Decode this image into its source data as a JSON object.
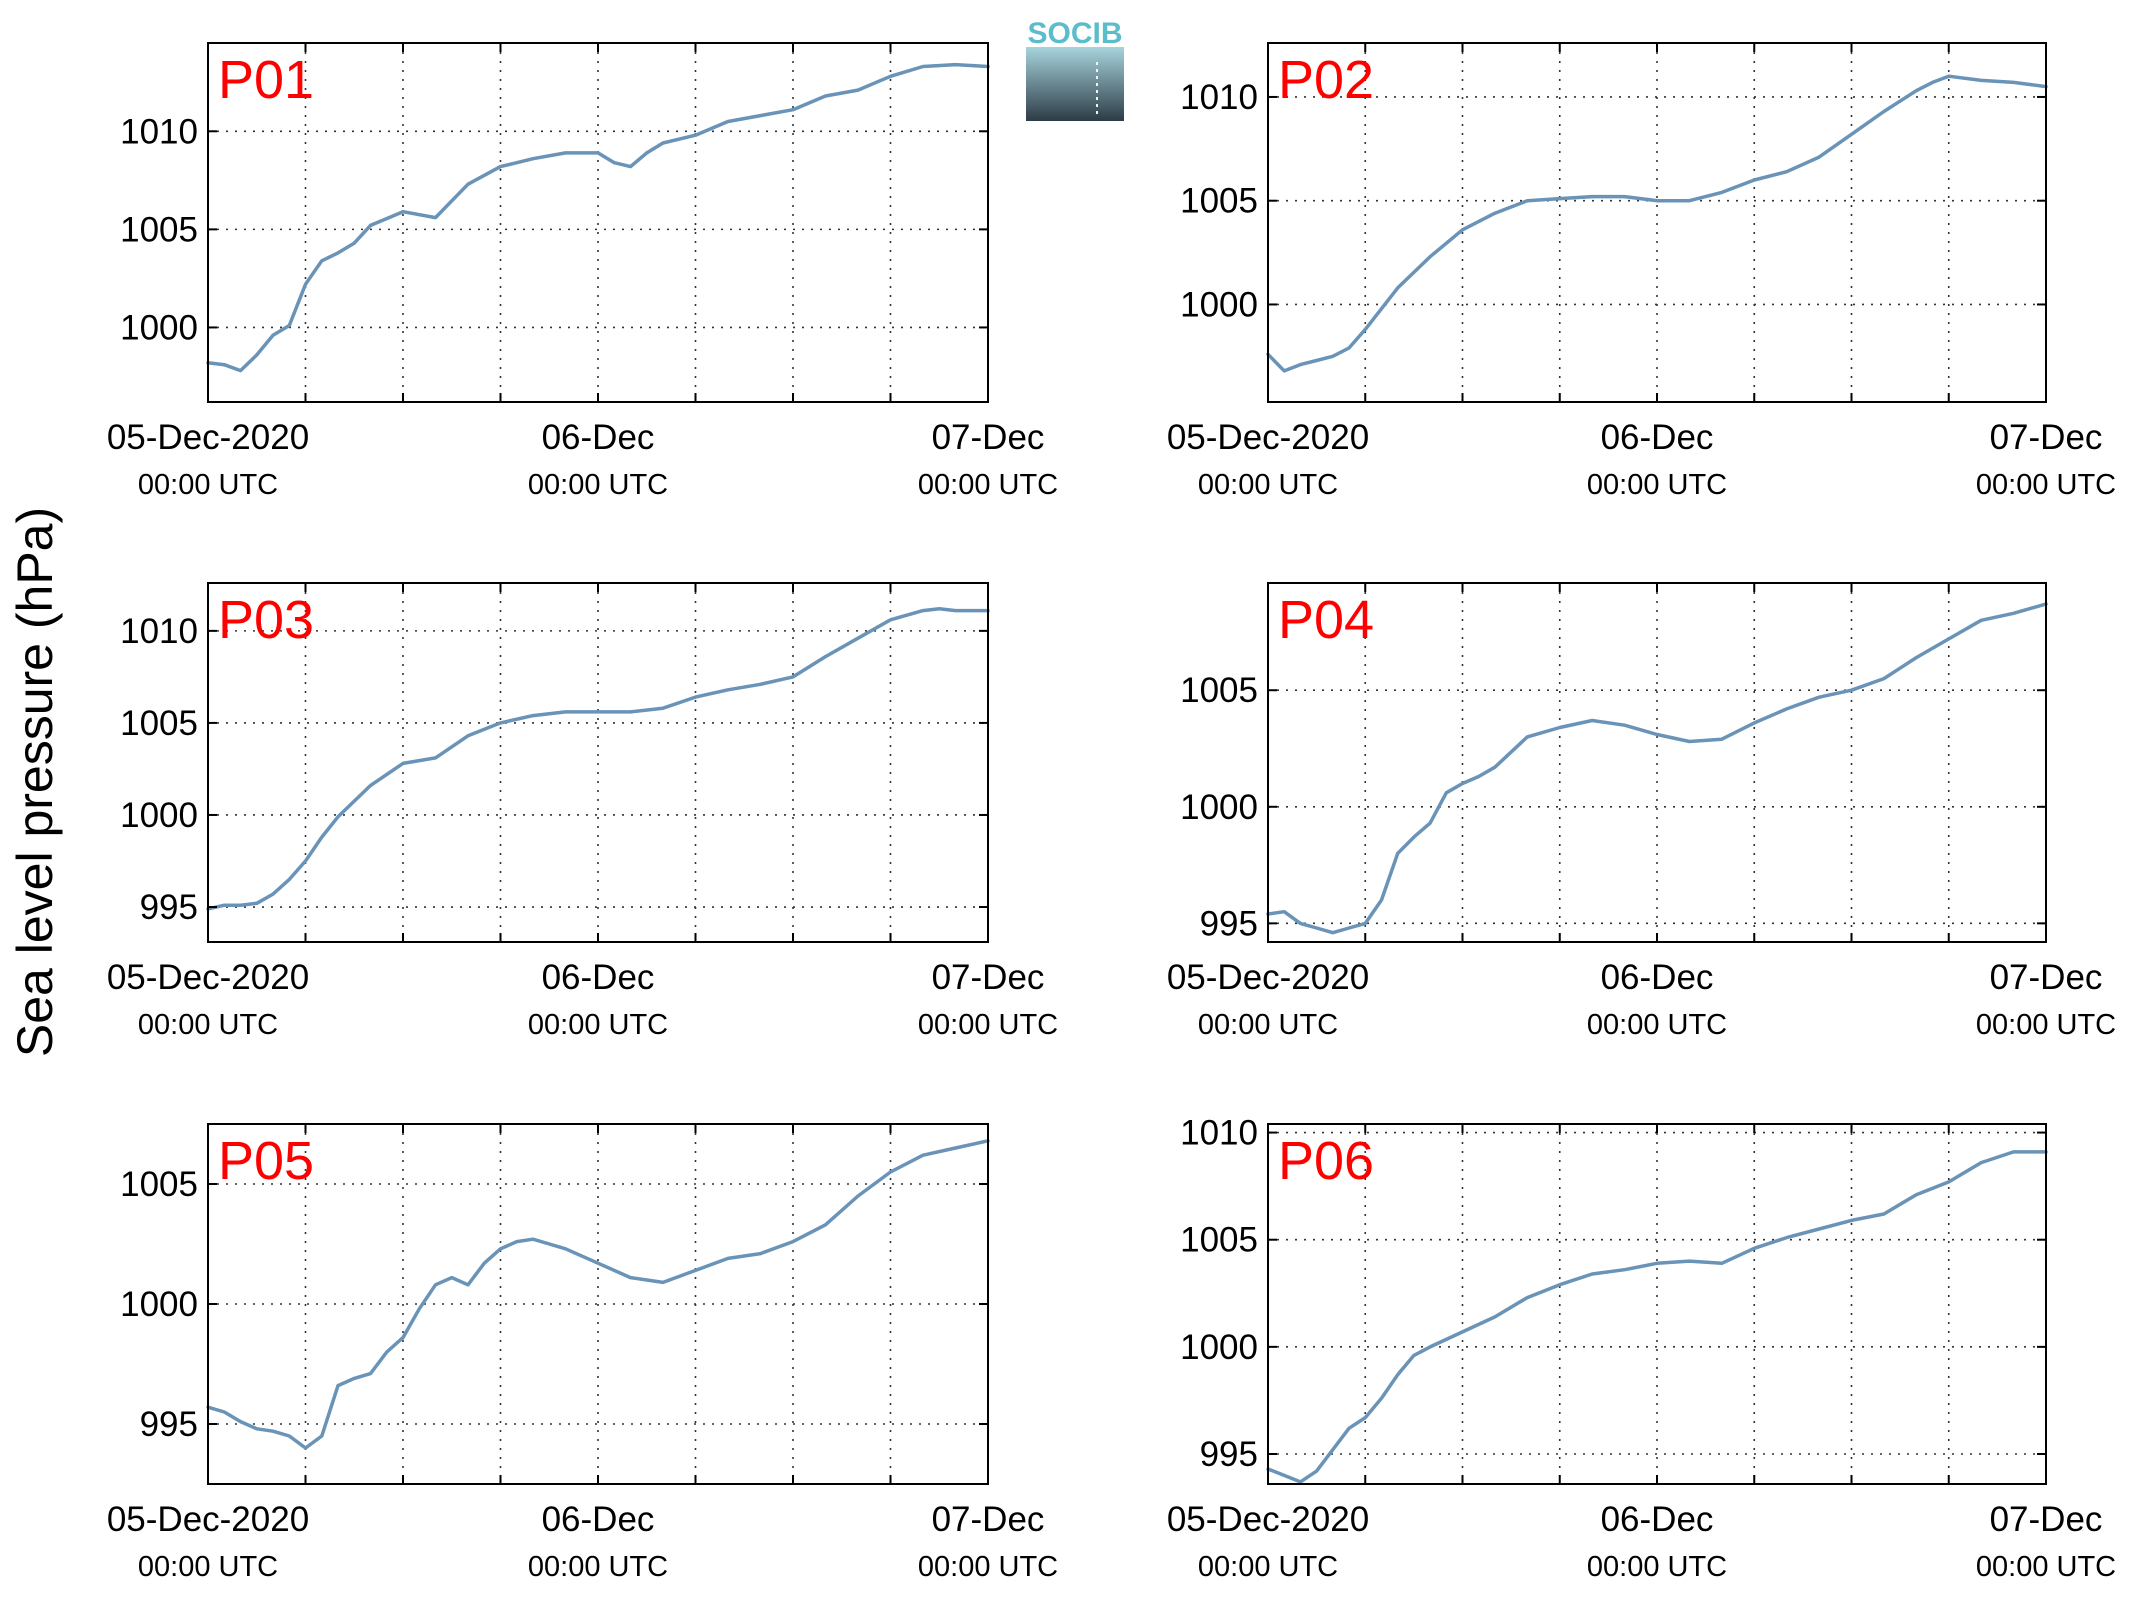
{
  "figure": {
    "ylabel": "Sea level pressure (hPa)",
    "logo_text": "SOCIB",
    "line_color": "#6a93b8",
    "label_color": "#ff0000"
  },
  "chart_data": [
    {
      "type": "line",
      "panel": "P01",
      "x_range_hours": [
        0,
        48
      ],
      "x_ticks": [
        {
          "date": "05-Dec-2020",
          "time": "00:00 UTC"
        },
        {
          "date": "06-Dec",
          "time": "00:00 UTC"
        },
        {
          "date": "07-Dec",
          "time": "00:00 UTC"
        }
      ],
      "ylim": [
        996.2,
        1014.5
      ],
      "yticks": [
        1000,
        1005,
        1010
      ],
      "grid": true,
      "x": [
        0,
        1,
        2,
        3,
        4,
        5,
        6,
        7,
        8,
        9,
        10,
        12,
        14,
        16,
        18,
        19,
        20,
        22,
        24,
        25,
        26,
        27,
        28,
        30,
        32,
        34,
        36,
        38,
        40,
        42,
        44,
        46,
        48
      ],
      "y": [
        998.2,
        998.1,
        997.8,
        998.6,
        999.6,
        1000.1,
        1002.2,
        1003.4,
        1003.8,
        1004.3,
        1005.2,
        1005.9,
        1005.6,
        1007.3,
        1008.2,
        1008.4,
        1008.6,
        1008.9,
        1008.9,
        1008.4,
        1008.2,
        1008.9,
        1009.4,
        1009.8,
        1010.5,
        1010.8,
        1011.1,
        1011.8,
        1012.1,
        1012.8,
        1013.3,
        1013.4,
        1013.3
      ]
    },
    {
      "type": "line",
      "panel": "P02",
      "x_range_hours": [
        0,
        48
      ],
      "x_ticks": [
        {
          "date": "05-Dec-2020",
          "time": "00:00 UTC"
        },
        {
          "date": "06-Dec",
          "time": "00:00 UTC"
        },
        {
          "date": "07-Dec",
          "time": "00:00 UTC"
        }
      ],
      "ylim": [
        995.3,
        1012.6
      ],
      "yticks": [
        1000,
        1005,
        1010
      ],
      "grid": true,
      "x": [
        0,
        1,
        2,
        3,
        4,
        5,
        6,
        8,
        10,
        12,
        14,
        16,
        18,
        20,
        22,
        24,
        26,
        28,
        30,
        32,
        34,
        36,
        38,
        40,
        41,
        42,
        44,
        46,
        47,
        48
      ],
      "y": [
        997.6,
        996.8,
        997.1,
        997.3,
        997.5,
        997.9,
        998.8,
        1000.8,
        1002.3,
        1003.6,
        1004.4,
        1005.0,
        1005.1,
        1005.2,
        1005.2,
        1005.0,
        1005.0,
        1005.4,
        1006.0,
        1006.4,
        1007.1,
        1008.2,
        1009.3,
        1010.3,
        1010.7,
        1011.0,
        1010.8,
        1010.7,
        1010.6,
        1010.5
      ]
    },
    {
      "type": "line",
      "panel": "P03",
      "x_range_hours": [
        0,
        48
      ],
      "x_ticks": [
        {
          "date": "05-Dec-2020",
          "time": "00:00 UTC"
        },
        {
          "date": "06-Dec",
          "time": "00:00 UTC"
        },
        {
          "date": "07-Dec",
          "time": "00:00 UTC"
        }
      ],
      "ylim": [
        993.1,
        1012.6
      ],
      "yticks": [
        995,
        1000,
        1005,
        1010
      ],
      "grid": true,
      "x": [
        0,
        1,
        2,
        3,
        4,
        5,
        6,
        7,
        8,
        10,
        12,
        14,
        16,
        18,
        20,
        22,
        24,
        26,
        28,
        30,
        32,
        34,
        36,
        38,
        40,
        42,
        44,
        45,
        46,
        47,
        48
      ],
      "y": [
        994.9,
        995.1,
        995.1,
        995.2,
        995.7,
        996.5,
        997.5,
        998.8,
        999.9,
        1001.6,
        1002.8,
        1003.1,
        1004.3,
        1005.0,
        1005.4,
        1005.6,
        1005.6,
        1005.6,
        1005.8,
        1006.4,
        1006.8,
        1007.1,
        1007.5,
        1008.6,
        1009.6,
        1010.6,
        1011.1,
        1011.2,
        1011.1,
        1011.1,
        1011.1
      ]
    },
    {
      "type": "line",
      "panel": "P04",
      "x_range_hours": [
        0,
        48
      ],
      "x_ticks": [
        {
          "date": "05-Dec-2020",
          "time": "00:00 UTC"
        },
        {
          "date": "06-Dec",
          "time": "00:00 UTC"
        },
        {
          "date": "07-Dec",
          "time": "00:00 UTC"
        }
      ],
      "ylim": [
        994.2,
        1009.6
      ],
      "yticks": [
        995,
        1000,
        1005
      ],
      "grid": true,
      "x": [
        0,
        1,
        2,
        3,
        4,
        5,
        6,
        7,
        8,
        9,
        10,
        11,
        12,
        13,
        14,
        16,
        18,
        20,
        22,
        24,
        26,
        28,
        30,
        32,
        34,
        36,
        38,
        40,
        42,
        44,
        46,
        48
      ],
      "y": [
        995.4,
        995.5,
        995.0,
        994.8,
        994.6,
        994.8,
        995.0,
        996.0,
        998.0,
        998.7,
        999.3,
        1000.6,
        1001.0,
        1001.3,
        1001.7,
        1003.0,
        1003.4,
        1003.7,
        1003.5,
        1003.1,
        1002.8,
        1002.9,
        1003.6,
        1004.2,
        1004.7,
        1005.0,
        1005.5,
        1006.4,
        1007.2,
        1008.0,
        1008.3,
        1008.7
      ]
    },
    {
      "type": "line",
      "panel": "P05",
      "x_range_hours": [
        0,
        48
      ],
      "x_ticks": [
        {
          "date": "05-Dec-2020",
          "time": "00:00 UTC"
        },
        {
          "date": "06-Dec",
          "time": "00:00 UTC"
        },
        {
          "date": "07-Dec",
          "time": "00:00 UTC"
        }
      ],
      "ylim": [
        992.5,
        1007.5
      ],
      "yticks": [
        995,
        1000,
        1005
      ],
      "grid": true,
      "x": [
        0,
        1,
        2,
        3,
        4,
        5,
        6,
        7,
        8,
        9,
        10,
        11,
        12,
        13,
        14,
        15,
        16,
        17,
        18,
        19,
        20,
        21,
        22,
        24,
        26,
        28,
        30,
        32,
        34,
        36,
        38,
        40,
        42,
        44,
        46,
        48
      ],
      "y": [
        995.7,
        995.5,
        995.1,
        994.8,
        994.7,
        994.5,
        994.0,
        994.5,
        996.6,
        996.9,
        997.1,
        998.0,
        998.6,
        999.8,
        1000.8,
        1001.1,
        1000.8,
        1001.7,
        1002.3,
        1002.6,
        1002.7,
        1002.5,
        1002.3,
        1001.7,
        1001.1,
        1000.9,
        1001.4,
        1001.9,
        1002.1,
        1002.6,
        1003.3,
        1004.5,
        1005.5,
        1006.2,
        1006.5,
        1006.8
      ]
    },
    {
      "type": "line",
      "panel": "P06",
      "x_range_hours": [
        0,
        48
      ],
      "x_ticks": [
        {
          "date": "05-Dec-2020",
          "time": "00:00 UTC"
        },
        {
          "date": "06-Dec",
          "time": "00:00 UTC"
        },
        {
          "date": "07-Dec",
          "time": "00:00 UTC"
        }
      ],
      "ylim": [
        993.6,
        1010.4
      ],
      "yticks": [
        995,
        1000,
        1005,
        1010
      ],
      "grid": true,
      "x": [
        0,
        1,
        2,
        3,
        4,
        5,
        6,
        7,
        8,
        9,
        10,
        12,
        14,
        16,
        18,
        20,
        22,
        24,
        26,
        28,
        30,
        32,
        34,
        36,
        38,
        40,
        42,
        44,
        46,
        47,
        48
      ],
      "y": [
        994.3,
        994.0,
        993.7,
        994.2,
        995.2,
        996.2,
        996.7,
        997.6,
        998.7,
        999.6,
        1000.0,
        1000.7,
        1001.4,
        1002.3,
        1002.9,
        1003.4,
        1003.6,
        1003.9,
        1004.0,
        1003.9,
        1004.6,
        1005.1,
        1005.5,
        1005.9,
        1006.2,
        1007.1,
        1007.7,
        1008.6,
        1009.1,
        1009.1,
        1009.1
      ]
    }
  ]
}
